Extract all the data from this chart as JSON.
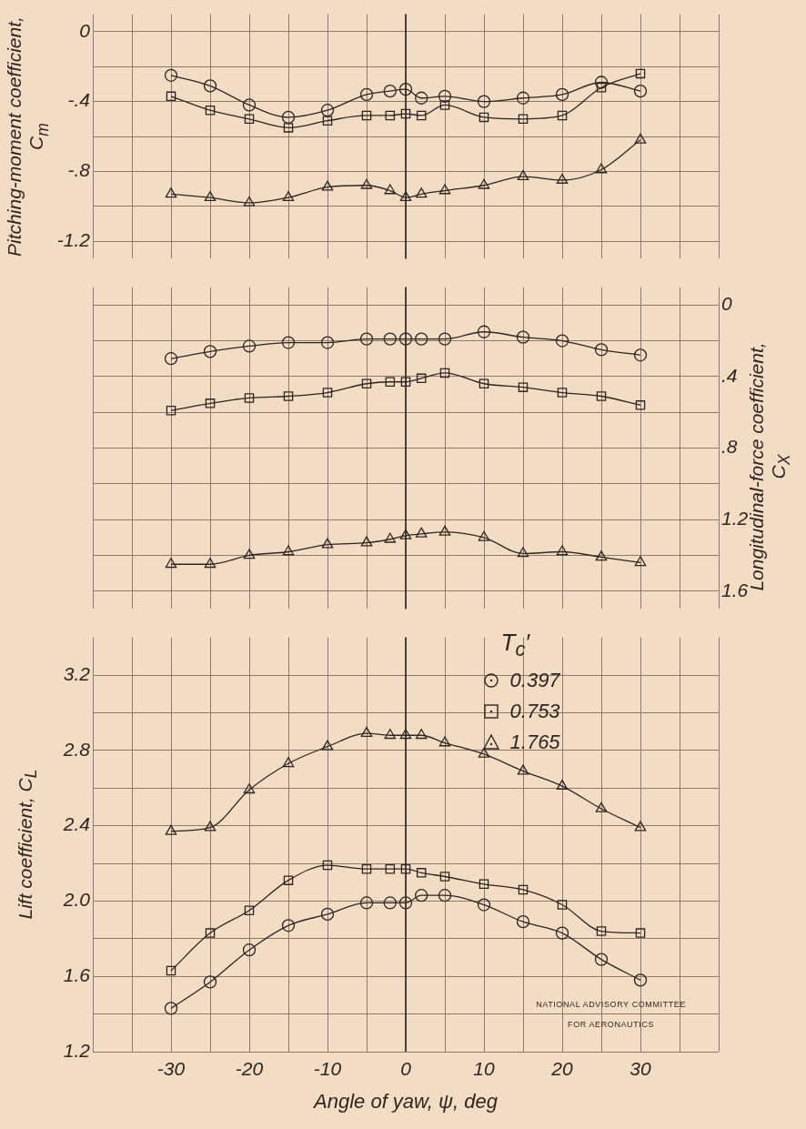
{
  "chart_data": [
    {
      "type": "line",
      "ylabel": "Pitching-moment coefficient, C$_{m}$",
      "x": [
        -30,
        -25,
        -20,
        -15,
        -10,
        -5,
        -2,
        0,
        2,
        5,
        10,
        15,
        20,
        25,
        30
      ],
      "xlim": [
        -40,
        40
      ],
      "xticks": [
        {
          "value": -40,
          "label": null
        },
        {
          "value": -35,
          "label": null
        },
        {
          "value": -30,
          "label": null
        },
        {
          "value": -25,
          "label": null
        },
        {
          "value": -20,
          "label": null
        },
        {
          "value": -15,
          "label": null
        },
        {
          "value": -10,
          "label": null
        },
        {
          "value": -5,
          "label": null
        },
        {
          "value": 0,
          "label": null
        },
        {
          "value": 5,
          "label": null
        },
        {
          "value": 10,
          "label": null
        },
        {
          "value": 15,
          "label": null
        },
        {
          "value": 20,
          "label": null
        },
        {
          "value": 25,
          "label": null
        },
        {
          "value": 30,
          "label": null
        },
        {
          "value": 35,
          "label": null
        },
        {
          "value": 40,
          "label": null
        }
      ],
      "ylim": [
        -1.3,
        0.1
      ],
      "yticks": [
        {
          "value": -1.2,
          "label": "-1.2"
        },
        {
          "value": -1.0,
          "label": null
        },
        {
          "value": -0.8,
          "label": "-.8"
        },
        {
          "value": -0.6,
          "label": null
        },
        {
          "value": -0.4,
          "label": "-.4"
        },
        {
          "value": -0.2,
          "label": null
        },
        0
      ],
      "tick_labels": "y",
      "grid": true,
      "line_style": "solid",
      "legend": false,
      "ref_lines": [
        {
          "axis": "x",
          "value": 0,
          "color": "#2f2520"
        }
      ],
      "series": [
        {
          "color": "#2f2520",
          "marker": "circle",
          "values": [
            -0.25,
            -0.31,
            -0.42,
            -0.49,
            -0.45,
            -0.36,
            -0.34,
            -0.33,
            -0.38,
            -0.37,
            -0.4,
            -0.38,
            -0.36,
            -0.29,
            -0.34
          ]
        },
        {
          "color": "#2f2520",
          "marker": "square",
          "values": [
            -0.37,
            -0.45,
            -0.5,
            -0.55,
            -0.51,
            -0.48,
            -0.48,
            -0.47,
            -0.48,
            -0.42,
            -0.49,
            -0.5,
            -0.48,
            -0.32,
            -0.24
          ]
        },
        {
          "color": "#2f2520",
          "marker": "triangle",
          "values": [
            -0.93,
            -0.95,
            -0.98,
            -0.95,
            -0.89,
            -0.88,
            -0.91,
            -0.95,
            -0.93,
            -0.91,
            -0.88,
            -0.83,
            -0.85,
            -0.79,
            -0.62
          ]
        }
      ]
    },
    {
      "type": "line",
      "y2label": "Longitudinal-force coefficient, C$_{X}$",
      "x": [
        -30,
        -25,
        -20,
        -15,
        -10,
        -5,
        -2,
        0,
        2,
        5,
        10,
        15,
        20,
        25,
        30
      ],
      "xlim": [
        -40,
        40
      ],
      "xticks": [
        {
          "value": -40,
          "label": null
        },
        {
          "value": -35,
          "label": null
        },
        {
          "value": -30,
          "label": null
        },
        {
          "value": -25,
          "label": null
        },
        {
          "value": -20,
          "label": null
        },
        {
          "value": -15,
          "label": null
        },
        {
          "value": -10,
          "label": null
        },
        {
          "value": -5,
          "label": null
        },
        {
          "value": 0,
          "label": null
        },
        {
          "value": 5,
          "label": null
        },
        {
          "value": 10,
          "label": null
        },
        {
          "value": 15,
          "label": null
        },
        {
          "value": 20,
          "label": null
        },
        {
          "value": 25,
          "label": null
        },
        {
          "value": 30,
          "label": null
        },
        {
          "value": 35,
          "label": null
        },
        {
          "value": 40,
          "label": null
        }
      ],
      "y2lim": [
        1.7,
        -0.1
      ],
      "y2ticks": [
        0,
        {
          "value": 0.2,
          "label": null
        },
        {
          "value": 0.4,
          "label": ".4"
        },
        {
          "value": 0.6,
          "label": null
        },
        {
          "value": 0.8,
          "label": ".8"
        },
        {
          "value": 1.0,
          "label": null
        },
        1.2,
        {
          "value": 1.4,
          "label": null
        },
        1.6
      ],
      "tick_labels": "y",
      "grid": true,
      "line_style": "solid",
      "legend": false,
      "ref_lines": [
        {
          "axis": "x",
          "value": 0,
          "color": "#2f2520"
        }
      ],
      "series": [
        {
          "color": "#2f2520",
          "marker": "circle",
          "axis": "y2",
          "values": [
            0.3,
            0.26,
            0.23,
            0.21,
            0.21,
            0.19,
            0.19,
            0.19,
            0.19,
            0.19,
            0.15,
            0.18,
            0.2,
            0.25,
            0.28
          ]
        },
        {
          "color": "#2f2520",
          "marker": "square",
          "axis": "y2",
          "values": [
            0.59,
            0.55,
            0.52,
            0.51,
            0.49,
            0.44,
            0.43,
            0.43,
            0.41,
            0.38,
            0.44,
            0.46,
            0.49,
            0.51,
            0.56
          ]
        },
        {
          "color": "#2f2520",
          "marker": "triangle",
          "axis": "y2",
          "values": [
            1.45,
            1.45,
            1.4,
            1.38,
            1.34,
            1.33,
            1.31,
            1.29,
            1.28,
            1.27,
            1.3,
            1.39,
            1.38,
            1.41,
            1.44
          ]
        }
      ]
    },
    {
      "type": "line",
      "ylabel": "Lift coefficient, C$_{L}$",
      "xlabel": "Angle of yaw, ψ, deg",
      "legend_title": "T$_{c}$′",
      "x": [
        -30,
        -25,
        -20,
        -15,
        -10,
        -5,
        -2,
        0,
        2,
        5,
        10,
        15,
        20,
        25,
        30
      ],
      "xlim": [
        -40,
        40
      ],
      "xticks": [
        {
          "value": -40,
          "label": null
        },
        {
          "value": -35,
          "label": null
        },
        {
          "value": -30,
          "label": "-30"
        },
        {
          "value": -25,
          "label": null
        },
        {
          "value": -20,
          "label": "-20"
        },
        {
          "value": -15,
          "label": null
        },
        {
          "value": -10,
          "label": "-10"
        },
        {
          "value": -5,
          "label": null
        },
        0,
        {
          "value": 5,
          "label": null
        },
        10,
        {
          "value": 15,
          "label": null
        },
        20,
        {
          "value": 25,
          "label": null
        },
        30,
        {
          "value": 35,
          "label": null
        },
        {
          "value": 40,
          "label": null
        }
      ],
      "ylim": [
        1.2,
        3.4
      ],
      "yticks": [
        1.2,
        {
          "value": 1.4,
          "label": null
        },
        1.6,
        {
          "value": 1.8,
          "label": null
        },
        {
          "value": 2.0,
          "label": "2.0"
        },
        {
          "value": 2.2,
          "label": null
        },
        2.4,
        {
          "value": 2.6,
          "label": null
        },
        2.8,
        {
          "value": 3.0,
          "label": null
        },
        3.2
      ],
      "grid": true,
      "line_style": "solid",
      "legend": "top right",
      "ref_lines": [
        {
          "axis": "x",
          "value": 0,
          "color": "#2f2520"
        }
      ],
      "annotations": [
        "NATIONAL ADVISORY COMMITTEE FOR AERONAUTICS"
      ],
      "series": [
        {
          "name": "0.397",
          "color": "#2f2520",
          "marker": "circle",
          "values": [
            1.43,
            1.57,
            1.74,
            1.87,
            1.93,
            1.99,
            1.99,
            1.99,
            2.03,
            2.03,
            1.98,
            1.89,
            1.83,
            1.69,
            1.58
          ]
        },
        {
          "name": "0.753",
          "color": "#2f2520",
          "marker": "square",
          "values": [
            1.63,
            1.83,
            1.95,
            2.11,
            2.19,
            2.17,
            2.17,
            2.17,
            2.15,
            2.13,
            2.09,
            2.06,
            1.98,
            1.84,
            1.83
          ]
        },
        {
          "name": "1.765",
          "color": "#2f2520",
          "marker": "triangle",
          "values": [
            2.37,
            2.39,
            2.59,
            2.73,
            2.82,
            2.89,
            2.88,
            2.88,
            2.88,
            2.84,
            2.78,
            2.69,
            2.61,
            2.49,
            2.39
          ]
        }
      ]
    }
  ]
}
